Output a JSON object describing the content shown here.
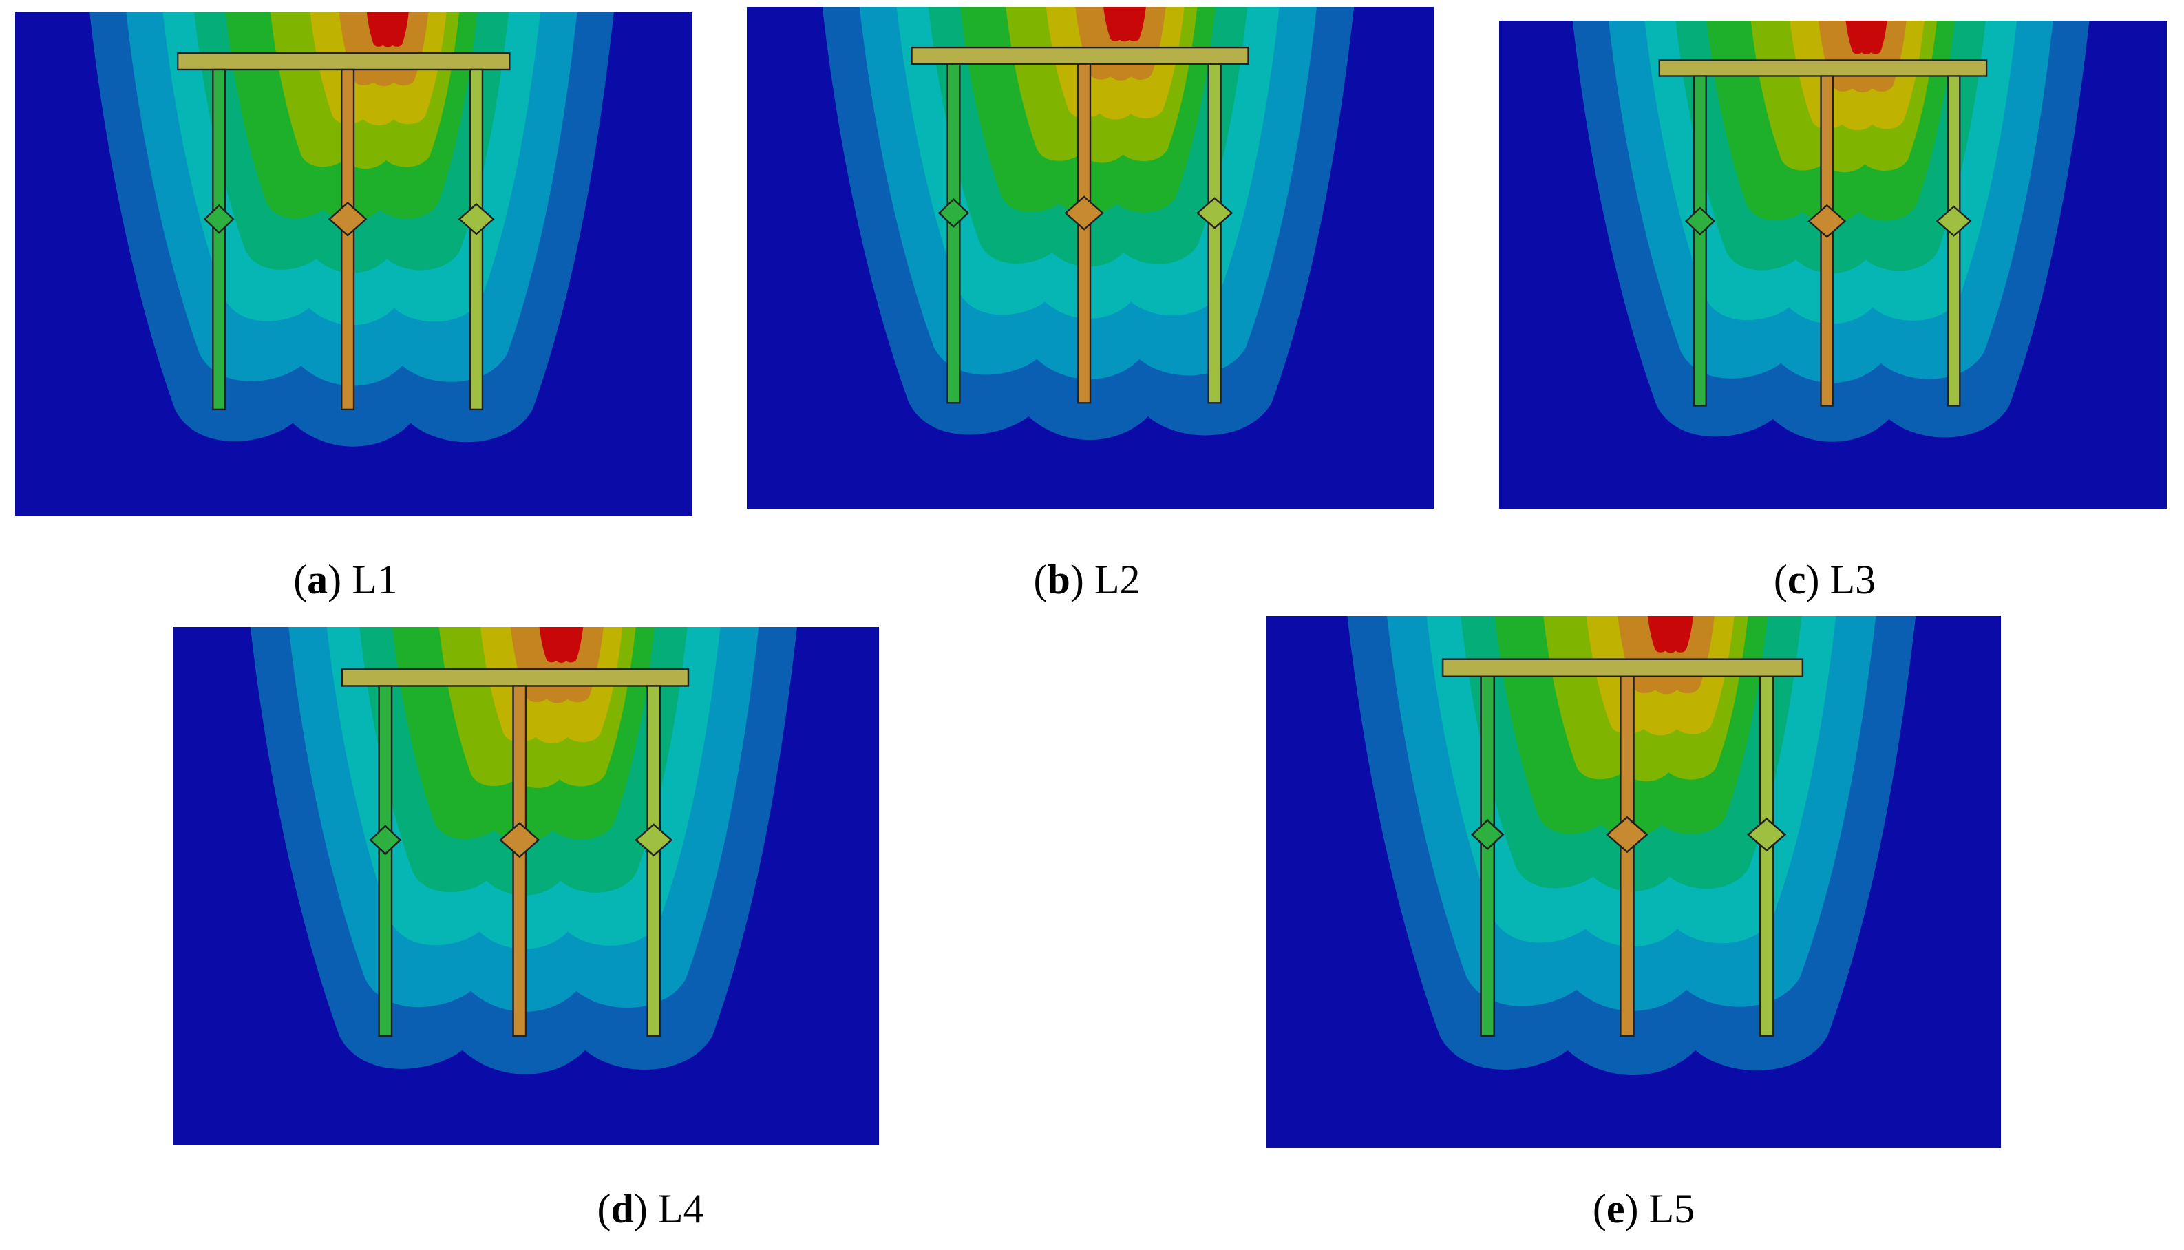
{
  "panels": [
    {
      "letter": "a",
      "name": "L1"
    },
    {
      "letter": "b",
      "name": "L2"
    },
    {
      "letter": "c",
      "name": "L3"
    },
    {
      "letter": "d",
      "name": "L4"
    },
    {
      "letter": "e",
      "name": "L5"
    }
  ],
  "caption_open": "(",
  "caption_close": ")"
}
